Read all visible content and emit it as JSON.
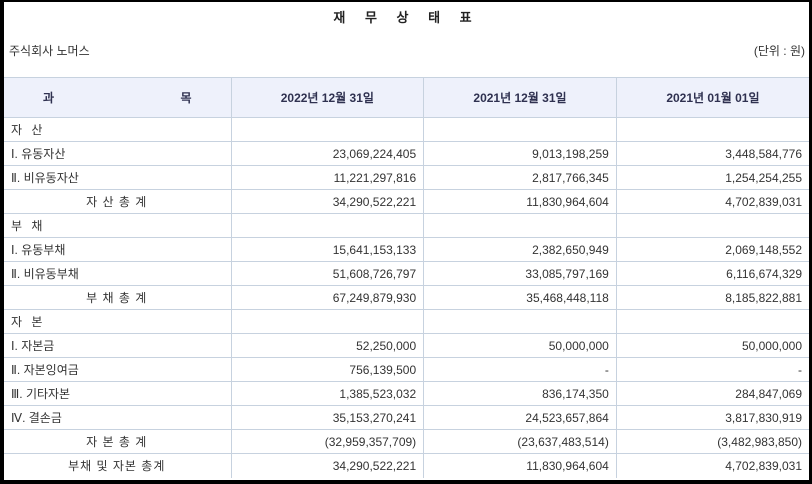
{
  "title": "재 무 상 태 표",
  "company": "주식회사 노머스",
  "unit": "(단위 : 원)",
  "colors": {
    "frame": "#000000",
    "header_bg": "#eef1fb",
    "border": "#c7d2df",
    "header_text": "#2f3150",
    "text": "#333333"
  },
  "table": {
    "header": {
      "account_left": "과",
      "account_right": "목",
      "periods": [
        "2022년 12월 31일",
        "2021년 12월 31일",
        "2021년 01월 01일"
      ]
    },
    "rows": [
      {
        "type": "section",
        "label": "자 산",
        "values": [
          "",
          "",
          ""
        ]
      },
      {
        "type": "item",
        "label": "Ⅰ. 유동자산",
        "values": [
          "23,069,224,405",
          "9,013,198,259",
          "3,448,584,776"
        ]
      },
      {
        "type": "item",
        "label": "Ⅱ. 비유동자산",
        "values": [
          "11,221,297,816",
          "2,817,766,345",
          "1,254,254,255"
        ]
      },
      {
        "type": "total",
        "label": "자 산 총 계",
        "values": [
          "34,290,522,221",
          "11,830,964,604",
          "4,702,839,031"
        ]
      },
      {
        "type": "section",
        "label": "부 채",
        "values": [
          "",
          "",
          ""
        ]
      },
      {
        "type": "item",
        "label": "Ⅰ. 유동부채",
        "values": [
          "15,641,153,133",
          "2,382,650,949",
          "2,069,148,552"
        ]
      },
      {
        "type": "item",
        "label": "Ⅱ. 비유동부채",
        "values": [
          "51,608,726,797",
          "33,085,797,169",
          "6,116,674,329"
        ]
      },
      {
        "type": "total",
        "label": "부 채 총 계",
        "values": [
          "67,249,879,930",
          "35,468,448,118",
          "8,185,822,881"
        ]
      },
      {
        "type": "section",
        "label": "자 본",
        "values": [
          "",
          "",
          ""
        ]
      },
      {
        "type": "item",
        "label": "Ⅰ. 자본금",
        "values": [
          "52,250,000",
          "50,000,000",
          "50,000,000"
        ]
      },
      {
        "type": "item",
        "label": "Ⅱ. 자본잉여금",
        "values": [
          "756,139,500",
          "-",
          "-"
        ]
      },
      {
        "type": "item",
        "label": "Ⅲ. 기타자본",
        "values": [
          "1,385,523,032",
          "836,174,350",
          "284,847,069"
        ]
      },
      {
        "type": "item",
        "label": "Ⅳ. 결손금",
        "values": [
          "35,153,270,241",
          "24,523,657,864",
          "3,817,830,919"
        ]
      },
      {
        "type": "total",
        "label": "자 본 총 계",
        "values": [
          "(32,959,357,709)",
          "(23,637,483,514)",
          "(3,482,983,850)"
        ]
      },
      {
        "type": "total",
        "label": "부채 및 자본 총계",
        "values": [
          "34,290,522,221",
          "11,830,964,604",
          "4,702,839,031"
        ]
      }
    ]
  }
}
